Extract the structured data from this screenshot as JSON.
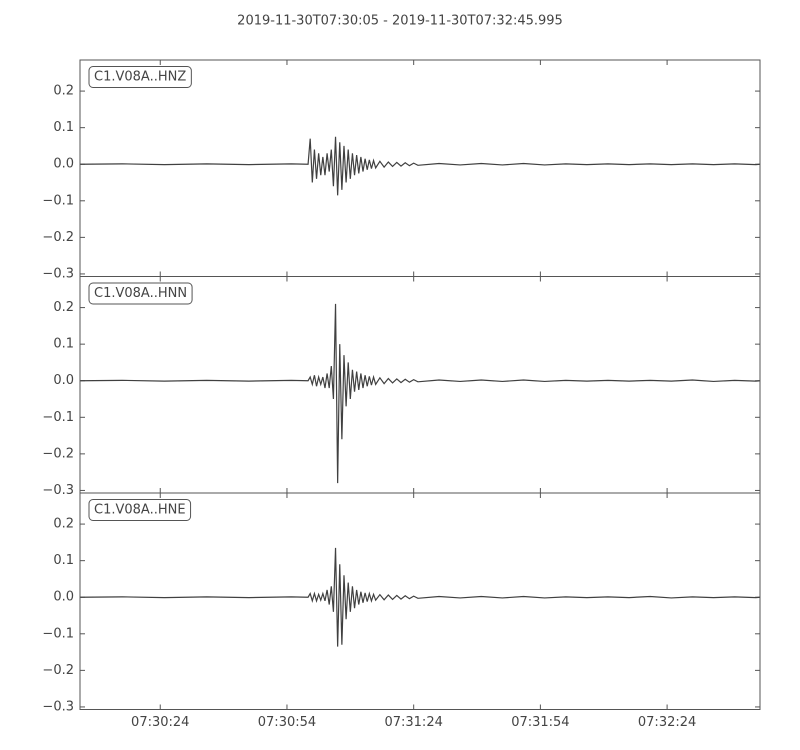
{
  "chart_data": [
    {
      "type": "line",
      "title": "2019-11-30T07:30:05  -  2019-11-30T07:32:45.995",
      "x": [
        0,
        10,
        20,
        30,
        40,
        50,
        54,
        54.5,
        55,
        55.5,
        56,
        56.5,
        57,
        57.5,
        58,
        58.5,
        59,
        59.5,
        60,
        60.5,
        61,
        61.5,
        62,
        62.5,
        63,
        63.5,
        64,
        64.5,
        65,
        65.5,
        66,
        66.5,
        67,
        67.5,
        68,
        68.5,
        69,
        69.5,
        70,
        71,
        72,
        73,
        74,
        75,
        76,
        77,
        78,
        79,
        80,
        85,
        90,
        95,
        100,
        105,
        110,
        115,
        120,
        125,
        130,
        135,
        140,
        145,
        150,
        155,
        160,
        160.995
      ],
      "series": [
        {
          "name": "C1.V08A..HNZ",
          "color": "#404040",
          "values": [
            0,
            0.001,
            -0.001,
            0.001,
            -0.001,
            0.001,
            0,
            0.07,
            -0.05,
            0.04,
            -0.04,
            0.03,
            -0.03,
            0.02,
            -0.03,
            0.03,
            -0.02,
            0.04,
            -0.06,
            0.075,
            -0.085,
            0.06,
            -0.07,
            0.05,
            -0.05,
            0.04,
            -0.04,
            0.03,
            -0.03,
            0.025,
            -0.025,
            0.02,
            -0.02,
            0.015,
            -0.015,
            0.012,
            -0.012,
            0.01,
            -0.01,
            0.008,
            -0.008,
            0.006,
            -0.006,
            0.005,
            -0.005,
            0.004,
            -0.004,
            0.003,
            -0.003,
            0.002,
            -0.002,
            0.002,
            -0.002,
            0.002,
            -0.002,
            0.001,
            -0.001,
            0.001,
            -0.001,
            0.001,
            -0.001,
            0.001,
            -0.001,
            0.001,
            -0.001,
            0
          ]
        }
      ],
      "xlim": [
        0,
        160.995
      ],
      "ylim": [
        -0.307,
        0.285
      ],
      "yticks": [
        {
          "value": -0.3,
          "label": "−0.3"
        },
        {
          "value": -0.2,
          "label": "−0.2"
        },
        {
          "value": -0.1,
          "label": "−0.1"
        },
        {
          "value": 0,
          "label": "0.0"
        },
        0.1,
        0.2
      ]
    },
    {
      "type": "line",
      "x": [
        0,
        10,
        20,
        30,
        40,
        50,
        54,
        54.5,
        55,
        55.5,
        56,
        56.5,
        57,
        57.5,
        58,
        58.5,
        59,
        59.5,
        60,
        60.5,
        61,
        61.5,
        62,
        62.5,
        63,
        63.5,
        64,
        64.5,
        65,
        65.5,
        66,
        66.5,
        67,
        67.5,
        68,
        68.5,
        69,
        69.5,
        70,
        71,
        72,
        73,
        74,
        75,
        76,
        77,
        78,
        79,
        80,
        85,
        90,
        95,
        100,
        105,
        110,
        115,
        120,
        125,
        130,
        135,
        140,
        145,
        150,
        155,
        160,
        160.995
      ],
      "series": [
        {
          "name": "C1.V08A..HNN",
          "color": "#404040",
          "values": [
            0,
            0.001,
            -0.001,
            0.001,
            -0.001,
            0.001,
            0,
            0.01,
            -0.01,
            0.015,
            -0.015,
            0.01,
            -0.01,
            0.01,
            -0.02,
            0.02,
            -0.02,
            0.04,
            -0.05,
            0.21,
            -0.28,
            0.1,
            -0.16,
            0.07,
            -0.07,
            0.05,
            -0.05,
            0.03,
            -0.03,
            0.025,
            -0.025,
            0.02,
            -0.02,
            0.015,
            -0.015,
            0.012,
            -0.012,
            0.01,
            -0.01,
            0.008,
            -0.008,
            0.006,
            -0.006,
            0.005,
            -0.005,
            0.004,
            -0.004,
            0.003,
            -0.003,
            0.002,
            -0.002,
            0.002,
            -0.002,
            0.002,
            -0.002,
            0.001,
            -0.001,
            0.001,
            -0.001,
            0.001,
            -0.001,
            0.002,
            -0.002,
            0.001,
            -0.001,
            0
          ]
        }
      ],
      "xlim": [
        0,
        160.995
      ],
      "ylim": [
        -0.307,
        0.285
      ],
      "yticks": [
        {
          "value": -0.3,
          "label": "−0.3"
        },
        {
          "value": -0.2,
          "label": "−0.2"
        },
        {
          "value": -0.1,
          "label": "−0.1"
        },
        {
          "value": 0,
          "label": "0.0"
        },
        0.1,
        0.2
      ]
    },
    {
      "type": "line",
      "x": [
        0,
        10,
        20,
        30,
        40,
        50,
        54,
        54.5,
        55,
        55.5,
        56,
        56.5,
        57,
        57.5,
        58,
        58.5,
        59,
        59.5,
        60,
        60.5,
        61,
        61.5,
        62,
        62.5,
        63,
        63.5,
        64,
        64.5,
        65,
        65.5,
        66,
        66.5,
        67,
        67.5,
        68,
        68.5,
        69,
        69.5,
        70,
        71,
        72,
        73,
        74,
        75,
        76,
        77,
        78,
        79,
        80,
        85,
        90,
        95,
        100,
        105,
        110,
        115,
        120,
        125,
        130,
        135,
        140,
        145,
        150,
        155,
        160,
        160.995
      ],
      "series": [
        {
          "name": "C1.V08A..HNE",
          "color": "#404040",
          "values": [
            0,
            0.001,
            -0.001,
            0.001,
            -0.001,
            0.001,
            0,
            0.01,
            -0.01,
            0.01,
            -0.01,
            0.008,
            -0.008,
            0.01,
            -0.01,
            0.02,
            -0.02,
            0.03,
            -0.04,
            0.135,
            -0.135,
            0.09,
            -0.13,
            0.06,
            -0.06,
            0.04,
            -0.04,
            0.03,
            -0.03,
            0.02,
            -0.02,
            0.015,
            -0.015,
            0.012,
            -0.012,
            0.01,
            -0.01,
            0.008,
            -0.008,
            0.007,
            -0.007,
            0.006,
            -0.006,
            0.005,
            -0.005,
            0.004,
            -0.004,
            0.003,
            -0.003,
            0.002,
            -0.002,
            0.002,
            -0.002,
            0.002,
            -0.002,
            0.001,
            -0.001,
            0.001,
            -0.001,
            0.002,
            -0.002,
            0.001,
            -0.001,
            0.001,
            -0.001,
            0
          ]
        }
      ],
      "xlim": [
        0,
        160.995
      ],
      "ylim": [
        -0.307,
        0.285
      ],
      "yticks": [
        {
          "value": -0.3,
          "label": "−0.3"
        },
        {
          "value": -0.2,
          "label": "−0.2"
        },
        {
          "value": -0.1,
          "label": "−0.1"
        },
        {
          "value": 0,
          "label": "0.0"
        },
        0.1,
        0.2
      ],
      "xticks": [
        {
          "value": 19,
          "label": "07:30:24"
        },
        {
          "value": 49,
          "label": "07:30:54"
        },
        {
          "value": 79,
          "label": "07:31:24"
        },
        {
          "value": 109,
          "label": "07:31:54"
        },
        {
          "value": 139,
          "label": "07:32:24"
        }
      ]
    }
  ]
}
